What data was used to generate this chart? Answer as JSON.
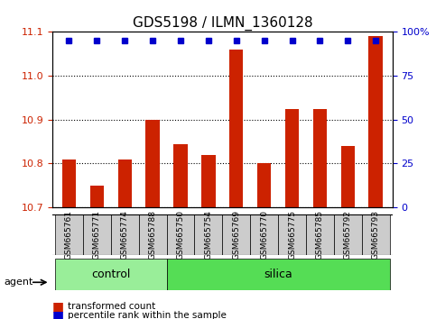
{
  "title": "GDS5198 / ILMN_1360128",
  "samples": [
    "GSM665761",
    "GSM665771",
    "GSM665774",
    "GSM665788",
    "GSM665750",
    "GSM665754",
    "GSM665769",
    "GSM665770",
    "GSM665775",
    "GSM665785",
    "GSM665792",
    "GSM665793"
  ],
  "bar_values": [
    10.81,
    10.75,
    10.81,
    10.9,
    10.845,
    10.82,
    11.06,
    10.8,
    10.925,
    10.925,
    10.84,
    11.09
  ],
  "percentile_values": [
    100,
    100,
    100,
    100,
    100,
    100,
    100,
    100,
    100,
    100,
    100,
    100
  ],
  "ylim_left": [
    10.7,
    11.1
  ],
  "ylim_right": [
    0,
    100
  ],
  "bar_color": "#cc2200",
  "dot_color": "#0000cc",
  "control_indices": [
    0,
    1,
    2,
    3
  ],
  "silica_indices": [
    4,
    5,
    6,
    7,
    8,
    9,
    10,
    11
  ],
  "control_label": "control",
  "silica_label": "silica",
  "agent_label": "agent",
  "legend_bar_label": "transformed count",
  "legend_dot_label": "percentile rank within the sample",
  "bar_width": 0.5,
  "yticks_left": [
    10.7,
    10.8,
    10.9,
    11.0,
    11.1
  ],
  "yticks_right": [
    0,
    25,
    50,
    75,
    100
  ],
  "group_bg_color": "#cccccc",
  "control_bg": "#99ee99",
  "silica_bg": "#55dd55",
  "figsize": [
    4.83,
    3.54
  ],
  "dpi": 100
}
